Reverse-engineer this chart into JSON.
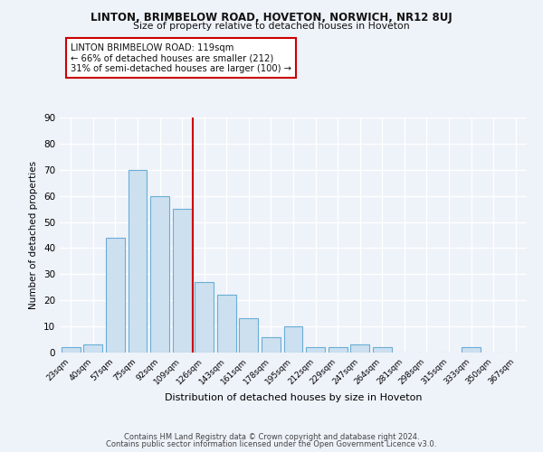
{
  "title": "LINTON, BRIMBELOW ROAD, HOVETON, NORWICH, NR12 8UJ",
  "subtitle": "Size of property relative to detached houses in Hoveton",
  "xlabel": "Distribution of detached houses by size in Hoveton",
  "ylabel": "Number of detached properties",
  "bar_labels": [
    "23sqm",
    "40sqm",
    "57sqm",
    "75sqm",
    "92sqm",
    "109sqm",
    "126sqm",
    "143sqm",
    "161sqm",
    "178sqm",
    "195sqm",
    "212sqm",
    "229sqm",
    "247sqm",
    "264sqm",
    "281sqm",
    "298sqm",
    "315sqm",
    "333sqm",
    "350sqm",
    "367sqm"
  ],
  "bar_heights": [
    2,
    3,
    44,
    70,
    60,
    55,
    27,
    22,
    13,
    6,
    10,
    2,
    2,
    3,
    2,
    0,
    0,
    0,
    2,
    0,
    0
  ],
  "bar_color": "#cce0f0",
  "bar_edge_color": "#6aaed6",
  "ylim": [
    0,
    90
  ],
  "yticks": [
    0,
    10,
    20,
    30,
    40,
    50,
    60,
    70,
    80,
    90
  ],
  "red_line_index": 5.5,
  "annotation_title": "LINTON BRIMBELOW ROAD: 119sqm",
  "annotation_line1": "← 66% of detached houses are smaller (212)",
  "annotation_line2": "31% of semi-detached houses are larger (100) →",
  "annotation_box_color": "#ffffff",
  "annotation_box_edge": "#cc0000",
  "red_line_color": "#cc0000",
  "background_color": "#eef2f9",
  "grid_color": "#ffffff",
  "footer1": "Contains HM Land Registry data © Crown copyright and database right 2024.",
  "footer2": "Contains public sector information licensed under the Open Government Licence v3.0."
}
